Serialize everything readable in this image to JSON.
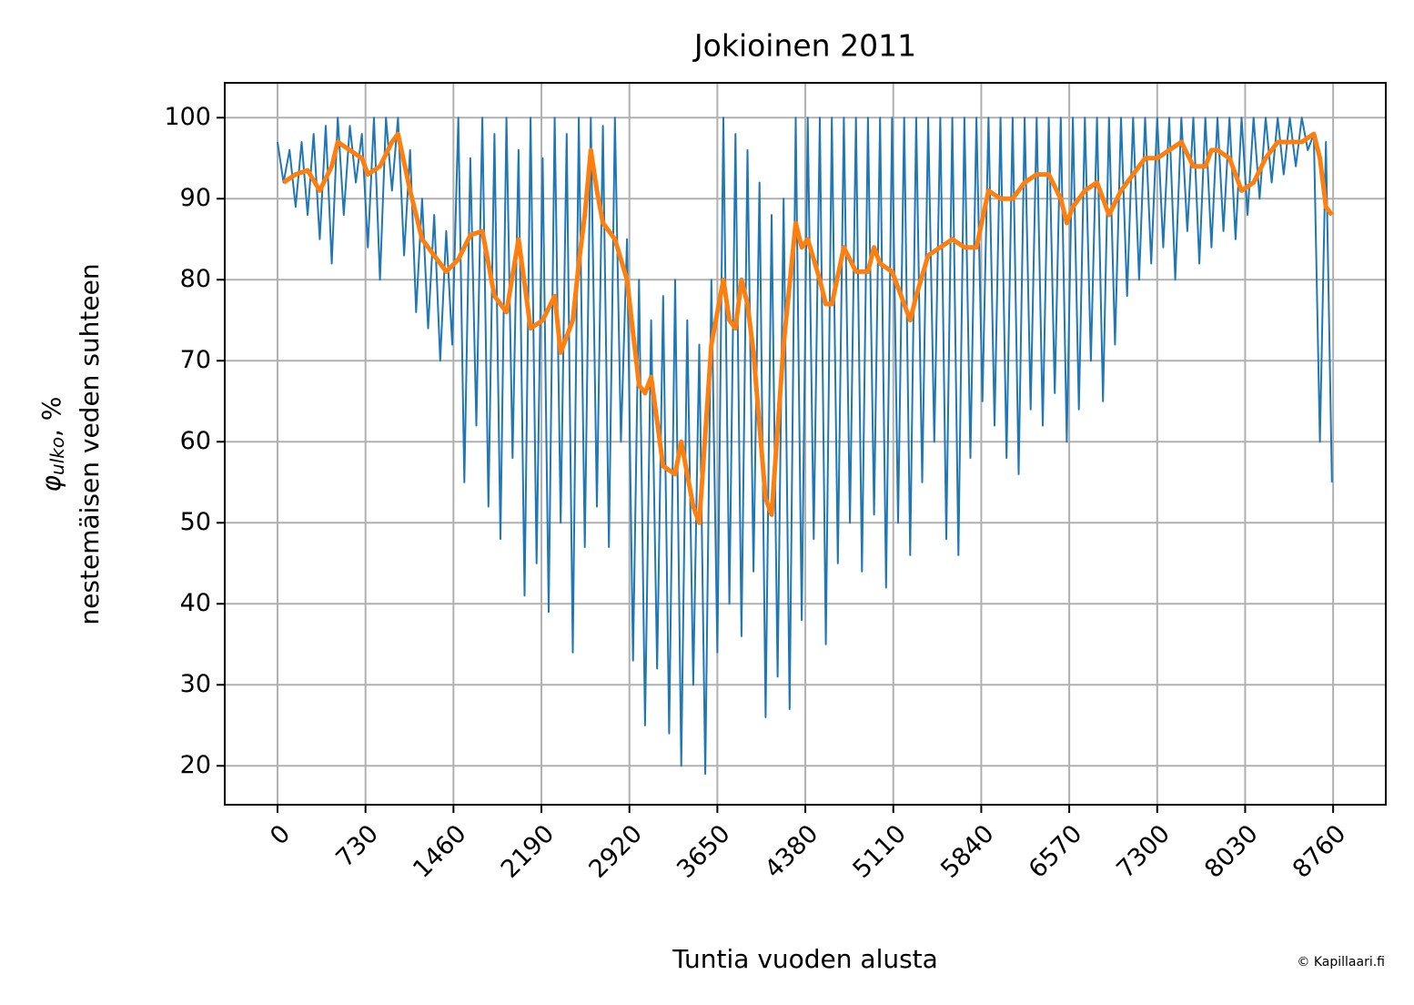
{
  "chart_data": {
    "type": "line",
    "title": "Jokioinen 2011",
    "xlabel": "Tuntia vuoden alusta",
    "ylabel": {
      "symbol": "φ",
      "subscript": "ulko",
      "suffix": ", %",
      "line2": "nestemäisen veden suhteen"
    },
    "credit": "© Kapillaari.fi",
    "xlim": [
      -438,
      9197
    ],
    "ylim": [
      15.2,
      104.3
    ],
    "xticks": [
      0,
      730,
      1460,
      2190,
      2920,
      3650,
      4380,
      5110,
      5840,
      6570,
      7300,
      8030,
      8760
    ],
    "yticks": [
      20,
      30,
      40,
      50,
      60,
      70,
      80,
      90,
      100
    ],
    "grid": true,
    "series": [
      {
        "color": "#1f77b4",
        "x": [
          0,
          50,
          100,
          150,
          200,
          250,
          300,
          350,
          400,
          450,
          500,
          550,
          600,
          650,
          700,
          750,
          800,
          850,
          900,
          950,
          1000,
          1050,
          1100,
          1150,
          1200,
          1250,
          1300,
          1350,
          1400,
          1450,
          1500,
          1550,
          1600,
          1650,
          1700,
          1750,
          1800,
          1850,
          1900,
          1950,
          2000,
          2050,
          2100,
          2150,
          2200,
          2250,
          2300,
          2350,
          2400,
          2450,
          2500,
          2550,
          2600,
          2650,
          2700,
          2750,
          2800,
          2850,
          2900,
          2950,
          3000,
          3050,
          3100,
          3150,
          3200,
          3250,
          3300,
          3350,
          3400,
          3450,
          3500,
          3550,
          3600,
          3650,
          3700,
          3750,
          3800,
          3850,
          3900,
          3950,
          4000,
          4050,
          4100,
          4150,
          4200,
          4250,
          4300,
          4350,
          4400,
          4450,
          4500,
          4550,
          4600,
          4650,
          4700,
          4750,
          4800,
          4850,
          4900,
          4950,
          5000,
          5050,
          5100,
          5150,
          5200,
          5250,
          5300,
          5350,
          5400,
          5450,
          5500,
          5550,
          5600,
          5650,
          5700,
          5750,
          5800,
          5850,
          5900,
          5950,
          6000,
          6050,
          6100,
          6150,
          6200,
          6250,
          6300,
          6350,
          6400,
          6450,
          6500,
          6550,
          6600,
          6650,
          6700,
          6750,
          6800,
          6850,
          6900,
          6950,
          7000,
          7050,
          7100,
          7150,
          7200,
          7250,
          7300,
          7350,
          7400,
          7450,
          7500,
          7550,
          7600,
          7650,
          7700,
          7750,
          7800,
          7850,
          7900,
          7950,
          8000,
          8050,
          8100,
          8150,
          8200,
          8250,
          8300,
          8350,
          8400,
          8450,
          8500,
          8550,
          8600,
          8650,
          8700,
          8750
        ],
        "values": [
          97,
          92,
          96,
          89,
          97,
          88,
          98,
          85,
          99,
          82,
          100,
          88,
          99,
          92,
          98,
          84,
          100,
          80,
          100,
          91,
          100,
          83,
          96,
          76,
          90,
          74,
          88,
          70,
          86,
          72,
          100,
          55,
          95,
          62,
          100,
          52,
          98,
          48,
          100,
          58,
          96,
          41,
          100,
          45,
          95,
          39,
          100,
          50,
          98,
          34,
          100,
          47,
          100,
          52,
          99,
          47,
          100,
          60,
          85,
          33,
          80,
          25,
          75,
          32,
          78,
          24,
          80,
          20,
          75,
          30,
          72,
          19,
          80,
          34,
          100,
          40,
          98,
          36,
          96,
          44,
          92,
          26,
          88,
          31,
          90,
          27,
          100,
          38,
          100,
          48,
          100,
          35,
          100,
          45,
          100,
          50,
          100,
          44,
          100,
          51,
          100,
          42,
          100,
          50,
          100,
          46,
          100,
          55,
          100,
          60,
          100,
          48,
          100,
          46,
          100,
          58,
          100,
          65,
          100,
          62,
          100,
          58,
          100,
          56,
          100,
          64,
          100,
          62,
          100,
          66,
          100,
          60,
          100,
          64,
          100,
          70,
          100,
          65,
          100,
          72,
          100,
          78,
          100,
          80,
          100,
          82,
          100,
          84,
          100,
          80,
          100,
          86,
          100,
          82,
          100,
          84,
          100,
          86,
          100,
          85,
          100,
          88,
          100,
          90,
          100,
          92,
          100,
          93,
          100,
          94,
          100,
          96,
          98,
          60,
          97,
          55
        ]
      },
      {
        "color": "#ff7f0e",
        "x": [
          50,
          150,
          250,
          350,
          450,
          500,
          600,
          700,
          750,
          850,
          950,
          1000,
          1100,
          1200,
          1300,
          1400,
          1500,
          1600,
          1700,
          1800,
          1900,
          2000,
          2100,
          2200,
          2300,
          2350,
          2450,
          2500,
          2550,
          2600,
          2650,
          2700,
          2800,
          2900,
          3000,
          3050,
          3100,
          3200,
          3300,
          3350,
          3450,
          3500,
          3600,
          3700,
          3750,
          3800,
          3850,
          3900,
          3950,
          4000,
          4050,
          4100,
          4200,
          4300,
          4350,
          4400,
          4500,
          4550,
          4600,
          4700,
          4800,
          4900,
          4950,
          5000,
          5100,
          5200,
          5250,
          5300,
          5400,
          5500,
          5600,
          5700,
          5800,
          5900,
          6000,
          6100,
          6200,
          6300,
          6400,
          6500,
          6550,
          6600,
          6700,
          6800,
          6900,
          7000,
          7100,
          7200,
          7300,
          7400,
          7500,
          7600,
          7700,
          7750,
          7800,
          7900,
          8000,
          8100,
          8200,
          8300,
          8400,
          8500,
          8600,
          8650,
          8700,
          8750
        ],
        "values": [
          92,
          93,
          93.5,
          91,
          94,
          97,
          96,
          95,
          93,
          94,
          97,
          98,
          91,
          85,
          83,
          81,
          82.5,
          85.5,
          86,
          78,
          76,
          85,
          74,
          75,
          78,
          71,
          75,
          82,
          88,
          96,
          91,
          87,
          85,
          80,
          67,
          66,
          68,
          57,
          56,
          60,
          52,
          50,
          72,
          80,
          75,
          74,
          80,
          77,
          71,
          62,
          53,
          51,
          72,
          87,
          84,
          85,
          80,
          77,
          77,
          84,
          81,
          81,
          84,
          82,
          81,
          77,
          75,
          78,
          83,
          84,
          85,
          84,
          84,
          91,
          90,
          90,
          92,
          93,
          93,
          90,
          87,
          89,
          91,
          92,
          88,
          91,
          93,
          95,
          95,
          96,
          97,
          94,
          94,
          96,
          96,
          95,
          91,
          92,
          95,
          97,
          97,
          97,
          98,
          95,
          89,
          88
        ]
      }
    ]
  }
}
